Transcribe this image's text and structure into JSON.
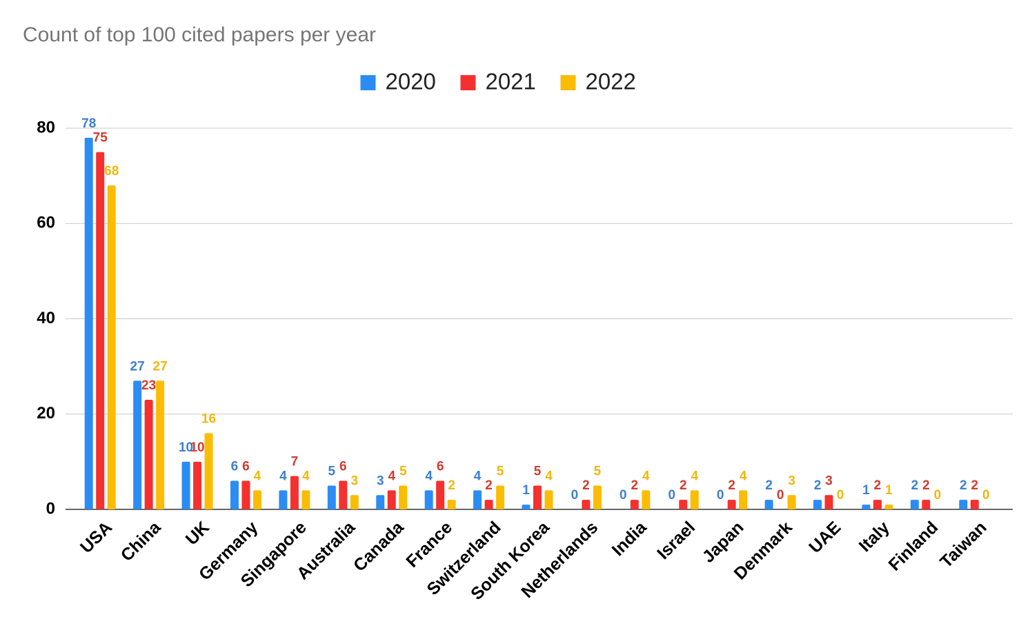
{
  "chart_data": {
    "type": "bar",
    "title": "Count of top 100 cited papers per year",
    "categories": [
      "USA",
      "China",
      "UK",
      "Germany",
      "Singapore",
      "Australia",
      "Canada",
      "France",
      "Switzerland",
      "South Korea",
      "Netherlands",
      "India",
      "Israel",
      "Japan",
      "Denmark",
      "UAE",
      "Italy",
      "Finland",
      "Taiwan"
    ],
    "series": [
      {
        "name": "2020",
        "color": "#2b8cf4",
        "label_color": "#3d7fd0",
        "values": [
          78,
          27,
          10,
          6,
          4,
          5,
          3,
          4,
          4,
          1,
          0,
          0,
          0,
          0,
          2,
          2,
          1,
          2,
          2
        ]
      },
      {
        "name": "2021",
        "color": "#f4312f",
        "label_color": "#d23b2e",
        "values": [
          75,
          23,
          10,
          6,
          7,
          6,
          4,
          6,
          2,
          5,
          2,
          2,
          2,
          2,
          0,
          3,
          2,
          2,
          2
        ]
      },
      {
        "name": "2022",
        "color": "#fbbc04",
        "label_color": "#f1b70a",
        "values": [
          68,
          27,
          16,
          4,
          4,
          3,
          5,
          2,
          5,
          4,
          5,
          4,
          4,
          4,
          3,
          0,
          1,
          0,
          0
        ]
      }
    ],
    "ylim": [
      0,
      80
    ],
    "yticks": [
      0,
      20,
      40,
      60,
      80
    ],
    "grid": true,
    "legend": "top",
    "data_labels": true
  }
}
